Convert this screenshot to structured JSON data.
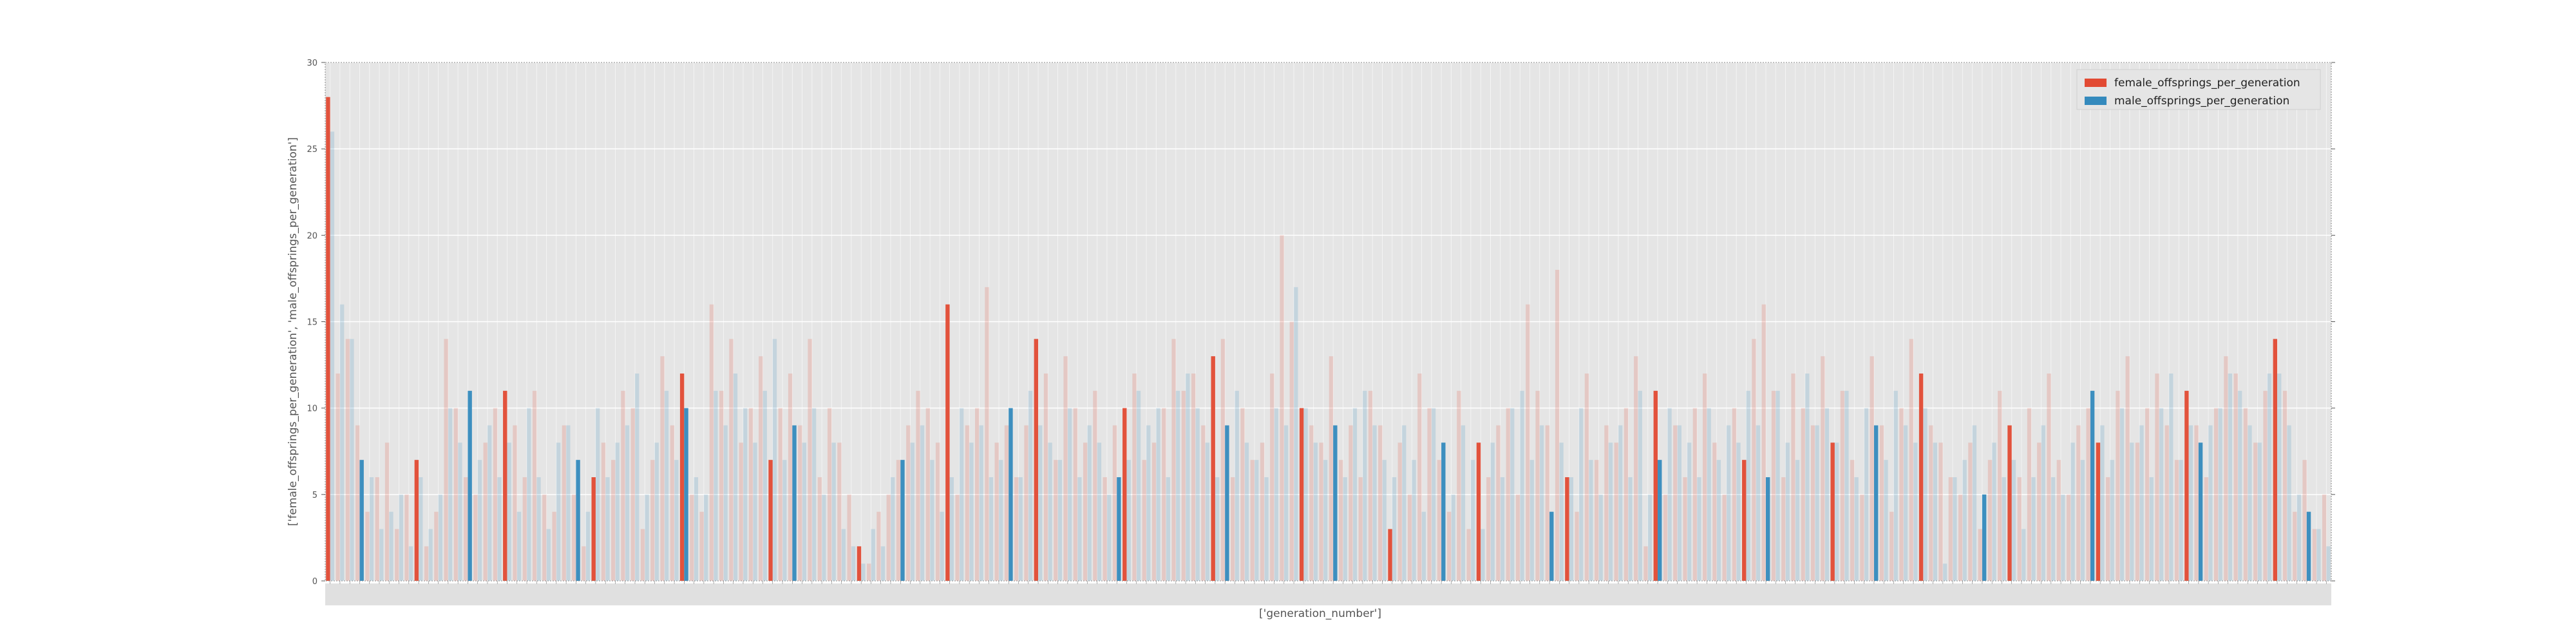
{
  "chart_data": {
    "type": "bar",
    "title": "",
    "xlabel": "['generation_number']",
    "ylabel": "['female_offsprings_per_generation', 'male_offsprings_per_generation']",
    "ylim": [
      0,
      30
    ],
    "yticks": [
      0,
      5,
      10,
      15,
      20,
      25,
      30
    ],
    "grid": true,
    "legend_position": "top-right",
    "categories_note": "x tick labels are too dense to read",
    "series": [
      {
        "name": "female_offsprings_per_generation",
        "color": "#e24a33",
        "values": [
          28,
          12,
          14,
          9,
          4,
          6,
          8,
          3,
          5,
          7,
          2,
          4,
          14,
          10,
          6,
          5,
          8,
          10,
          11,
          9,
          6,
          11,
          5,
          4,
          9,
          5,
          2,
          6,
          8,
          7,
          11,
          10,
          3,
          7,
          13,
          9,
          12,
          5,
          4,
          16,
          11,
          14,
          8,
          10,
          13,
          7,
          10,
          12,
          9,
          14,
          6,
          10,
          8,
          5,
          2,
          1,
          4,
          5,
          7,
          9,
          11,
          10,
          8,
          16,
          5,
          9,
          10,
          17,
          8,
          9,
          6,
          9,
          14,
          12,
          7,
          13,
          10,
          8,
          11,
          6,
          9,
          10,
          12,
          7,
          8,
          10,
          14,
          11,
          12,
          9,
          13,
          14,
          6,
          10,
          7,
          8,
          12,
          20,
          15,
          10,
          9,
          8,
          13,
          7,
          9,
          6,
          11,
          9,
          3,
          8,
          5,
          12,
          10,
          7,
          4,
          11,
          3,
          8,
          6,
          9,
          10,
          5,
          16,
          11,
          9,
          18,
          6,
          4,
          12,
          7,
          9,
          8,
          10,
          13,
          2,
          11,
          5,
          9,
          6,
          10,
          12,
          8,
          5,
          10,
          7,
          14,
          16,
          11,
          6,
          12,
          10,
          9,
          13,
          8,
          11,
          7,
          5,
          13,
          9,
          4,
          10,
          14,
          12,
          9,
          8,
          6,
          5,
          8,
          3,
          7,
          11,
          9,
          6,
          10,
          8,
          12,
          7,
          5,
          9,
          10,
          8,
          6,
          11,
          13,
          8,
          10,
          12,
          9,
          7,
          11,
          9,
          6,
          10,
          13,
          12,
          10,
          8,
          11,
          14,
          11,
          4,
          7,
          3,
          5
        ]
      },
      {
        "name": "male_offsprings_per_generation",
        "color": "#348abd",
        "values": [
          26,
          16,
          14,
          7,
          6,
          3,
          4,
          5,
          2,
          6,
          3,
          5,
          10,
          8,
          11,
          7,
          9,
          6,
          8,
          4,
          10,
          6,
          3,
          8,
          9,
          7,
          4,
          10,
          6,
          8,
          9,
          12,
          5,
          8,
          11,
          7,
          10,
          6,
          5,
          11,
          9,
          12,
          10,
          8,
          11,
          14,
          7,
          9,
          8,
          10,
          5,
          8,
          3,
          2,
          1,
          3,
          2,
          6,
          7,
          8,
          9,
          7,
          4,
          6,
          10,
          8,
          9,
          6,
          7,
          10,
          6,
          11,
          9,
          8,
          7,
          10,
          6,
          9,
          8,
          5,
          6,
          7,
          11,
          9,
          10,
          6,
          11,
          12,
          10,
          8,
          6,
          9,
          11,
          8,
          7,
          6,
          10,
          9,
          17,
          10,
          8,
          7,
          9,
          6,
          10,
          11,
          9,
          7,
          6,
          9,
          7,
          4,
          10,
          8,
          5,
          9,
          7,
          3,
          8,
          6,
          10,
          11,
          7,
          9,
          4,
          8,
          6,
          10,
          7,
          5,
          8,
          9,
          6,
          11,
          5,
          7,
          10,
          9,
          8,
          6,
          10,
          7,
          9,
          8,
          11,
          9,
          6,
          11,
          8,
          7,
          12,
          9,
          10,
          8,
          11,
          6,
          10,
          9,
          7,
          11,
          9,
          8,
          10,
          8,
          1,
          6,
          7,
          9,
          5,
          8,
          6,
          7,
          3,
          6,
          9,
          6,
          5,
          8,
          7,
          11,
          9,
          7,
          10,
          8,
          9,
          6,
          10,
          12,
          7,
          9,
          8,
          9,
          10,
          12,
          11,
          9,
          8,
          12,
          12,
          9,
          5,
          4,
          3,
          2
        ]
      }
    ]
  }
}
